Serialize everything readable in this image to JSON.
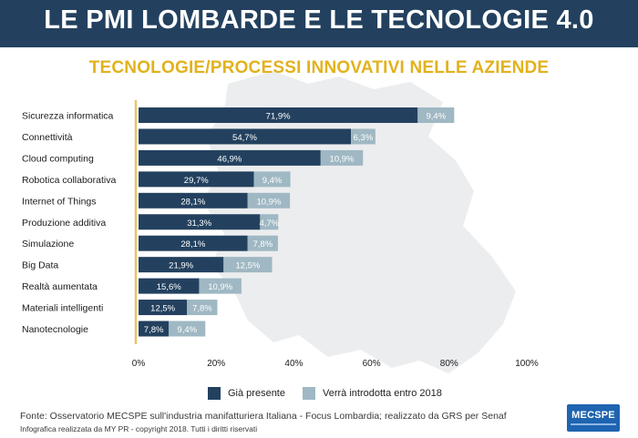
{
  "header": {
    "title": "LE PMI LOMBARDE E LE TECNOLOGIE 4.0",
    "subtitle": "TECNOLOGIE/PROCESSI INNOVATIVI NELLE AZIENDE"
  },
  "colors": {
    "banner": "#23415f",
    "subtitle": "#e2b21d",
    "present": "#23415f",
    "planned": "#9fb8c3",
    "axis_line": "#e8c36a"
  },
  "chart_data": {
    "type": "bar",
    "orientation": "horizontal",
    "stacked": true,
    "categories": [
      "Sicurezza informatica",
      "Connettività",
      "Cloud computing",
      "Robotica collaborativa",
      "Internet of Things",
      "Produzione additiva",
      "Simulazione",
      "Big Data",
      "Realtà aumentata",
      "Materiali intelligenti",
      "Nanotecnologie"
    ],
    "series": [
      {
        "name": "Già presente",
        "values": [
          71.9,
          54.7,
          46.9,
          29.7,
          28.1,
          31.3,
          28.1,
          21.9,
          15.6,
          12.5,
          7.8
        ],
        "labels": [
          "71,9%",
          "54,7%",
          "46,9%",
          "29,7%",
          "28,1%",
          "31,3%",
          "28,1%",
          "21,9%",
          "15,6%",
          "12,5%",
          "7,8%"
        ]
      },
      {
        "name": "Verrà introdotta entro 2018",
        "values": [
          9.4,
          6.3,
          10.9,
          9.4,
          10.9,
          4.7,
          7.8,
          12.5,
          10.9,
          7.8,
          9.4
        ],
        "labels": [
          "9,4%",
          "6,3%",
          "10,9%",
          "9,4%",
          "10,9%",
          "4,7%",
          "7,8%",
          "12,5%",
          "10,9%",
          "7,8%",
          "9,4%"
        ]
      }
    ],
    "xlim": [
      0,
      100
    ],
    "xticks": [
      0,
      20,
      40,
      60,
      80,
      100
    ],
    "xtick_labels": [
      "0%",
      "20%",
      "40%",
      "60%",
      "80%",
      "100%"
    ],
    "legend_position": "bottom",
    "grid": false
  },
  "legend": {
    "present_label": "Già presente",
    "planned_label": "Verrà introdotta entro 2018"
  },
  "footer": {
    "source": "Fonte: Osservatorio MECSPE sull'industria manifatturiera Italiana - Focus Lombardia; realizzato da GRS per Senaf",
    "credit": "Infografica realizzata da MY PR - copyright 2018. Tutti i diritti riservati"
  },
  "logo": {
    "text": "MECSPE"
  }
}
